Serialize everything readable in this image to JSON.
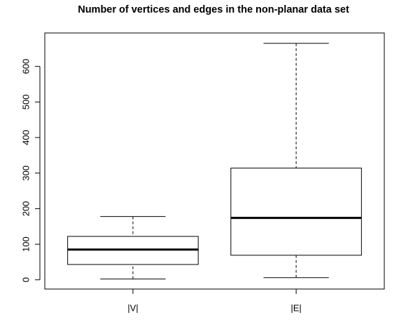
{
  "chart_data": {
    "type": "box",
    "title": "Number of vertices and edges in the non-planar data set",
    "categories": [
      "|V|",
      "|E|"
    ],
    "min": [
      2,
      6
    ],
    "q1": [
      43,
      69
    ],
    "median": [
      85,
      174
    ],
    "q3": [
      122,
      314
    ],
    "max": [
      178,
      665
    ],
    "ylim": [
      -26,
      694
    ],
    "yticks": [
      0,
      100,
      200,
      300,
      400,
      500,
      600
    ],
    "color": "#000000"
  }
}
